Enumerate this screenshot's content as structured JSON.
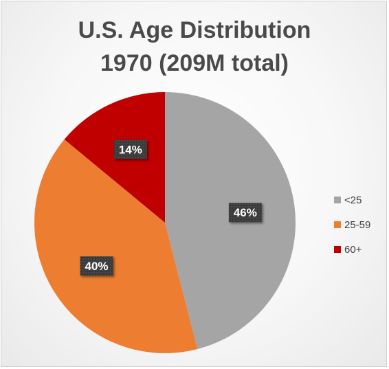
{
  "chart_data": {
    "type": "pie",
    "title_lines": [
      "U.S. Age Distribution",
      "1970 (209M total)"
    ],
    "categories": [
      "<25",
      "25-59",
      "60+"
    ],
    "values": [
      46,
      40,
      14
    ],
    "labels": [
      "46%",
      "40%",
      "14%"
    ],
    "colors": [
      "#a5a5a5",
      "#ed7d31",
      "#c00000"
    ],
    "legend_position": "right"
  }
}
